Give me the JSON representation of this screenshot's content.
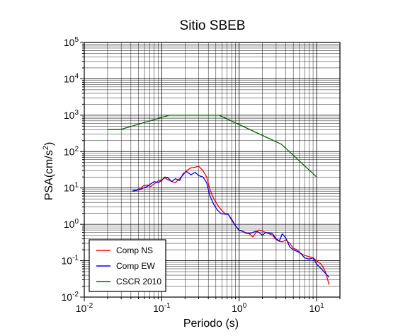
{
  "chart_data": {
    "type": "line",
    "title": "Sitio SBEB",
    "xlabel": "Periodo (s)",
    "ylabel": "PSA(cm/s2)",
    "x_scale": "log",
    "y_scale": "log",
    "xlim": [
      0.01,
      20
    ],
    "ylim": [
      0.01,
      100000
    ],
    "x_ticks": [
      {
        "base": "10",
        "exp": "-2",
        "value": 0.01
      },
      {
        "base": "10",
        "exp": "-1",
        "value": 0.1
      },
      {
        "base": "10",
        "exp": "0",
        "value": 1
      },
      {
        "base": "10",
        "exp": "1",
        "value": 10
      }
    ],
    "y_ticks": [
      {
        "base": "10",
        "exp": "-2",
        "value": 0.01
      },
      {
        "base": "10",
        "exp": "-1",
        "value": 0.1
      },
      {
        "base": "10",
        "exp": "0",
        "value": 1
      },
      {
        "base": "10",
        "exp": "1",
        "value": 10
      },
      {
        "base": "10",
        "exp": "2",
        "value": 100
      },
      {
        "base": "10",
        "exp": "3",
        "value": 1000
      },
      {
        "base": "10",
        "exp": "4",
        "value": 10000
      },
      {
        "base": "10",
        "exp": "5",
        "value": 100000
      }
    ],
    "grid": true,
    "legend_position": "bottom-left",
    "series": [
      {
        "name": "Comp NS",
        "color": "#ff0000",
        "points": [
          [
            0.042,
            8.8
          ],
          [
            0.047,
            9.0
          ],
          [
            0.052,
            9.5
          ],
          [
            0.058,
            11.5
          ],
          [
            0.065,
            12.0
          ],
          [
            0.072,
            11.0
          ],
          [
            0.08,
            13.0
          ],
          [
            0.09,
            15.5
          ],
          [
            0.1,
            17.0
          ],
          [
            0.11,
            19.0
          ],
          [
            0.12,
            17.0
          ],
          [
            0.135,
            15.0
          ],
          [
            0.15,
            14.0
          ],
          [
            0.17,
            18.0
          ],
          [
            0.19,
            23.0
          ],
          [
            0.21,
            30.0
          ],
          [
            0.24,
            36.0
          ],
          [
            0.27,
            37.0
          ],
          [
            0.3,
            40.0
          ],
          [
            0.34,
            30.0
          ],
          [
            0.38,
            20.0
          ],
          [
            0.42,
            9.0
          ],
          [
            0.47,
            5.0
          ],
          [
            0.52,
            3.5
          ],
          [
            0.58,
            2.6
          ],
          [
            0.65,
            2.0
          ],
          [
            0.72,
            1.9
          ],
          [
            0.8,
            1.4
          ],
          [
            0.9,
            0.9
          ],
          [
            1.0,
            0.7
          ],
          [
            1.1,
            0.65
          ],
          [
            1.2,
            0.6
          ],
          [
            1.35,
            0.55
          ],
          [
            1.5,
            0.45
          ],
          [
            1.65,
            0.6
          ],
          [
            1.8,
            0.7
          ],
          [
            2.0,
            0.65
          ],
          [
            2.2,
            0.6
          ],
          [
            2.45,
            0.55
          ],
          [
            2.7,
            0.5
          ],
          [
            3.0,
            0.38
          ],
          [
            3.3,
            0.34
          ],
          [
            3.6,
            0.33
          ],
          [
            4.0,
            0.37
          ],
          [
            4.5,
            0.3
          ],
          [
            5.0,
            0.22
          ],
          [
            5.6,
            0.2
          ],
          [
            6.2,
            0.16
          ],
          [
            7.0,
            0.14
          ],
          [
            8.0,
            0.13
          ],
          [
            9.0,
            0.12
          ],
          [
            10.0,
            0.1
          ],
          [
            11.5,
            0.08
          ],
          [
            13.0,
            0.05
          ],
          [
            14.5,
            0.022
          ]
        ]
      },
      {
        "name": "Comp EW",
        "color": "#0000ff",
        "points": [
          [
            0.042,
            8.2
          ],
          [
            0.047,
            8.5
          ],
          [
            0.052,
            9.0
          ],
          [
            0.058,
            10.0
          ],
          [
            0.065,
            11.0
          ],
          [
            0.072,
            13.0
          ],
          [
            0.08,
            15.0
          ],
          [
            0.09,
            14.0
          ],
          [
            0.1,
            16.0
          ],
          [
            0.11,
            20.0
          ],
          [
            0.12,
            19.0
          ],
          [
            0.135,
            15.0
          ],
          [
            0.15,
            18.0
          ],
          [
            0.17,
            16.0
          ],
          [
            0.19,
            25.0
          ],
          [
            0.21,
            28.0
          ],
          [
            0.24,
            23.0
          ],
          [
            0.27,
            27.0
          ],
          [
            0.3,
            22.0
          ],
          [
            0.34,
            20.0
          ],
          [
            0.38,
            14.0
          ],
          [
            0.42,
            6.0
          ],
          [
            0.47,
            3.5
          ],
          [
            0.52,
            2.5
          ],
          [
            0.58,
            2.0
          ],
          [
            0.65,
            1.9
          ],
          [
            0.72,
            1.9
          ],
          [
            0.8,
            1.3
          ],
          [
            0.9,
            0.9
          ],
          [
            1.0,
            0.68
          ],
          [
            1.1,
            0.65
          ],
          [
            1.2,
            0.58
          ],
          [
            1.35,
            0.56
          ],
          [
            1.5,
            0.6
          ],
          [
            1.65,
            0.65
          ],
          [
            1.8,
            0.6
          ],
          [
            2.0,
            0.5
          ],
          [
            2.2,
            0.6
          ],
          [
            2.45,
            0.58
          ],
          [
            2.7,
            0.55
          ],
          [
            3.0,
            0.4
          ],
          [
            3.3,
            0.35
          ],
          [
            3.6,
            0.55
          ],
          [
            4.0,
            0.42
          ],
          [
            4.5,
            0.24
          ],
          [
            5.0,
            0.2
          ],
          [
            5.6,
            0.18
          ],
          [
            6.2,
            0.16
          ],
          [
            7.0,
            0.12
          ],
          [
            8.0,
            0.11
          ],
          [
            9.0,
            0.12
          ],
          [
            10.0,
            0.08
          ],
          [
            11.5,
            0.06
          ],
          [
            13.0,
            0.045
          ],
          [
            14.5,
            0.035
          ]
        ]
      },
      {
        "name": "CSCR 2010",
        "color": "#006400",
        "points": [
          [
            0.02,
            400
          ],
          [
            0.03,
            410
          ],
          [
            0.125,
            1000
          ],
          [
            0.55,
            1000
          ],
          [
            3.5,
            160
          ],
          [
            10.0,
            20
          ]
        ]
      }
    ]
  }
}
